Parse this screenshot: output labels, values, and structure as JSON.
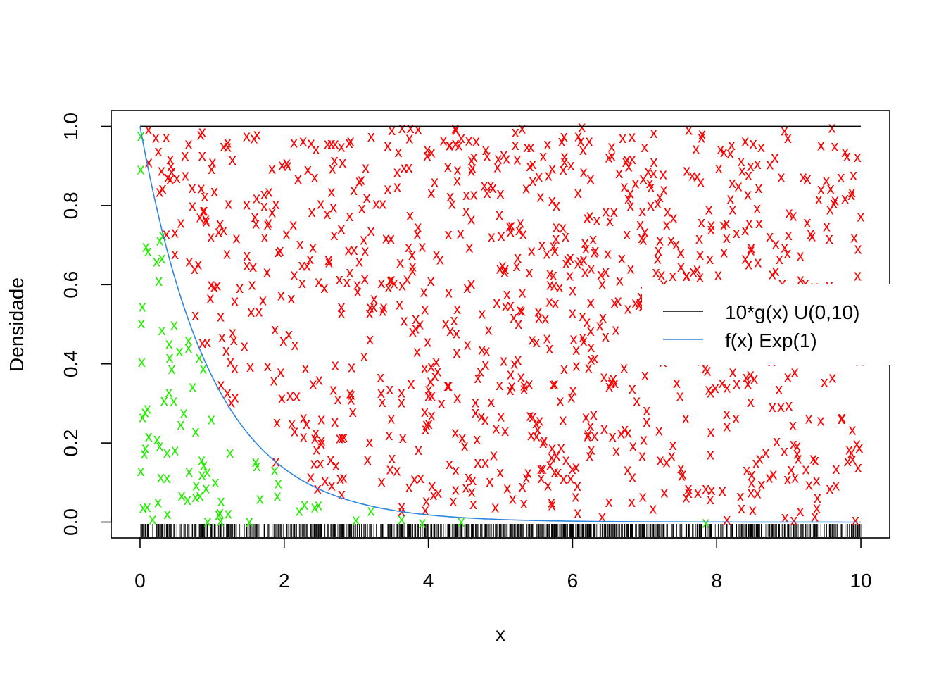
{
  "chart_data": {
    "type": "scatter",
    "title": "",
    "xlabel": "x",
    "ylabel": "Densidade",
    "xlim": [
      -0.4,
      10.4
    ],
    "ylim": [
      -0.04,
      1.04
    ],
    "x_ticks": [
      0,
      2,
      4,
      6,
      8,
      10
    ],
    "y_ticks": [
      0.0,
      0.2,
      0.4,
      0.6,
      0.8,
      1.0
    ],
    "x_tick_labels": [
      "0",
      "2",
      "4",
      "6",
      "8",
      "10"
    ],
    "y_tick_labels": [
      "0.0",
      "0.2",
      "0.4",
      "0.6",
      "0.8",
      "1.0"
    ],
    "grid": false,
    "legend": {
      "placement": "right",
      "entries": [
        {
          "label": "10*g(x) U(0,10)",
          "color": "#000000"
        },
        {
          "label": "f(x) Exp(1)",
          "color": "#2e86de"
        }
      ]
    },
    "lines": [
      {
        "name": "10*g(x) U(0,10)",
        "kind": "constant",
        "value": 1.0,
        "x_range": [
          0,
          10
        ],
        "color": "#000000"
      },
      {
        "name": "f(x) Exp(1)",
        "kind": "exp_density",
        "rate": 1,
        "x_range": [
          0,
          10
        ],
        "color": "#2e86de"
      }
    ],
    "points": {
      "marker": "x",
      "count": 1000,
      "accepted_color": "#22ee00",
      "rejected_color": "#ff0000",
      "rule": "accepted when y <= exp(-x); x ~ U(0,10), y ~ U(0,1)",
      "rug": "x values of all points drawn as rug ticks along the bottom"
    }
  }
}
